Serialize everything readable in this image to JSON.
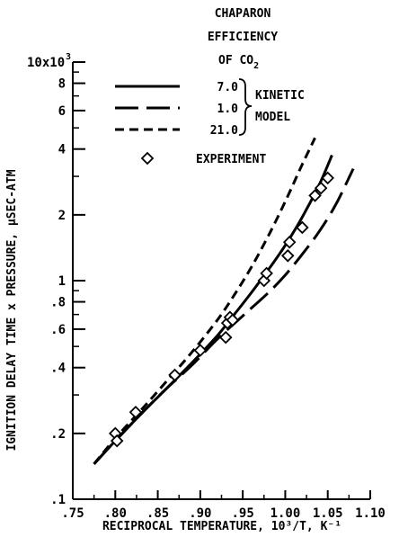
{
  "chart_data": {
    "type": "line",
    "title": "",
    "xlabel": "RECIPROCAL TEMPERATURE, 10³/T, K⁻¹",
    "ylabel": "IGNITION DELAY TIME x PRESSURE, µSEC-ATM",
    "y_multiplier_label": "10x10³",
    "xlim": [
      0.75,
      1.1
    ],
    "ylim": [
      0.1,
      10
    ],
    "y_scale": "log",
    "grid": false,
    "x_ticks": [
      0.75,
      0.8,
      0.85,
      0.9,
      0.95,
      1.0,
      1.05,
      1.1
    ],
    "x_tick_labels": [
      ".75",
      ".80",
      ".85",
      ".90",
      ".95",
      "1.00",
      "1.05",
      "1.10"
    ],
    "y_ticks": [
      0.1,
      0.2,
      0.4,
      0.6,
      0.8,
      1,
      2,
      4,
      6,
      8,
      10
    ],
    "y_tick_labels": [
      ".1",
      ".2",
      ".4",
      ".6",
      ".8",
      "1",
      "2",
      "4",
      "6",
      "8",
      "10x10"
    ],
    "legend": {
      "heading": [
        "CHAPARON",
        "EFFICIENCY",
        "OF CO2"
      ],
      "group_label": [
        "KINETIC",
        "MODEL"
      ],
      "placement": "top-right"
    },
    "series": [
      {
        "name": "7.0",
        "style": "solid",
        "x": [
          0.775,
          0.8,
          0.83,
          0.86,
          0.89,
          0.92,
          0.94,
          0.96,
          0.98,
          1.0,
          1.02,
          1.04,
          1.055
        ],
        "y": [
          0.145,
          0.185,
          0.245,
          0.32,
          0.42,
          0.56,
          0.7,
          0.88,
          1.12,
          1.45,
          1.95,
          2.75,
          3.75
        ]
      },
      {
        "name": "1.0",
        "style": "long-dash",
        "x": [
          0.775,
          0.8,
          0.83,
          0.86,
          0.89,
          0.92,
          0.95,
          0.98,
          1.0,
          1.02,
          1.04,
          1.06,
          1.08
        ],
        "y": [
          0.145,
          0.185,
          0.245,
          0.32,
          0.41,
          0.54,
          0.69,
          0.88,
          1.06,
          1.32,
          1.68,
          2.25,
          3.25
        ]
      },
      {
        "name": "21.0",
        "style": "short-dash",
        "x": [
          0.775,
          0.8,
          0.83,
          0.86,
          0.89,
          0.92,
          0.94,
          0.96,
          0.98,
          1.0,
          1.02,
          1.035
        ],
        "y": [
          0.145,
          0.19,
          0.255,
          0.345,
          0.47,
          0.66,
          0.86,
          1.15,
          1.6,
          2.3,
          3.4,
          4.5
        ]
      },
      {
        "name": "EXPERIMENT",
        "style": "marker-diamond",
        "x": [
          0.8,
          0.802,
          0.824,
          0.87,
          0.9,
          0.93,
          0.932,
          0.935,
          0.938,
          0.975,
          0.978,
          1.003,
          1.005,
          1.02,
          1.035,
          1.042,
          1.05
        ],
        "y": [
          0.2,
          0.185,
          0.25,
          0.37,
          0.48,
          0.55,
          0.64,
          0.68,
          0.66,
          1.0,
          1.08,
          1.3,
          1.5,
          1.75,
          2.45,
          2.65,
          2.95
        ]
      }
    ]
  }
}
